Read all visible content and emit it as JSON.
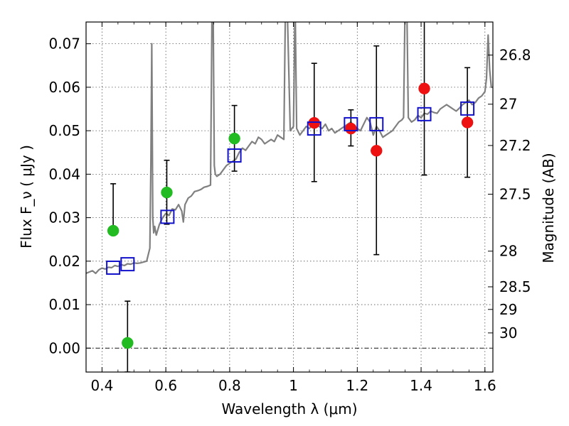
{
  "chart_data": {
    "type": "scatter",
    "xlabel": "Wavelength  λ (μm)",
    "ylabel": "Flux  F_ν  ( μJy )",
    "ylabel_right": "Magnitude (AB)",
    "xlim": [
      0.35,
      1.625
    ],
    "ylim": [
      -0.0055,
      0.075
    ],
    "grid": true,
    "x_ticks": [
      0.4,
      0.6,
      0.8,
      1.0,
      1.2,
      1.4,
      1.6
    ],
    "x_tick_labels": [
      "0.4",
      "0.6",
      "0.8",
      "1",
      "1.2",
      "1.4",
      "1.6"
    ],
    "y_ticks": [
      0.0,
      0.01,
      0.02,
      0.03,
      0.04,
      0.05,
      0.06,
      0.07
    ],
    "y_tick_labels": [
      "0.00",
      "0.01",
      "0.02",
      "0.03",
      "0.04",
      "0.05",
      "0.06",
      "0.07"
    ],
    "right_ticks": [
      {
        "label": "26.8",
        "flux": 0.0674
      },
      {
        "label": "27",
        "flux": 0.0561
      },
      {
        "label": "27.2",
        "flux": 0.0466
      },
      {
        "label": "27.5",
        "flux": 0.0354
      },
      {
        "label": "28",
        "flux": 0.0223
      },
      {
        "label": "28.5",
        "flux": 0.0141
      },
      {
        "label": "29",
        "flux": 0.0089
      },
      {
        "label": "30",
        "flux": 0.0035
      }
    ],
    "colors": {
      "green": "#22bb22",
      "red": "#ee1111",
      "model": "#808080",
      "box": "#1111cc",
      "errorbar": "#000000",
      "grid": "#555555"
    },
    "series": [
      {
        "name": "Model SED",
        "kind": "line",
        "x": [
          0.35,
          0.36,
          0.37,
          0.38,
          0.39,
          0.4,
          0.41,
          0.42,
          0.43,
          0.44,
          0.45,
          0.46,
          0.47,
          0.48,
          0.49,
          0.5,
          0.51,
          0.52,
          0.53,
          0.54,
          0.55,
          0.553,
          0.556,
          0.559,
          0.562,
          0.565,
          0.57,
          0.58,
          0.59,
          0.6,
          0.61,
          0.62,
          0.63,
          0.64,
          0.65,
          0.655,
          0.66,
          0.67,
          0.68,
          0.69,
          0.7,
          0.71,
          0.72,
          0.73,
          0.74,
          0.745,
          0.748,
          0.752,
          0.755,
          0.76,
          0.77,
          0.78,
          0.79,
          0.8,
          0.81,
          0.82,
          0.83,
          0.84,
          0.85,
          0.86,
          0.87,
          0.88,
          0.89,
          0.9,
          0.91,
          0.92,
          0.93,
          0.94,
          0.95,
          0.96,
          0.97,
          0.975,
          0.98,
          0.99,
          1.0,
          1.005,
          1.01,
          1.02,
          1.03,
          1.04,
          1.05,
          1.06,
          1.07,
          1.08,
          1.09,
          1.1,
          1.11,
          1.12,
          1.13,
          1.14,
          1.15,
          1.16,
          1.17,
          1.18,
          1.19,
          1.2,
          1.21,
          1.22,
          1.23,
          1.24,
          1.25,
          1.26,
          1.27,
          1.28,
          1.29,
          1.3,
          1.31,
          1.32,
          1.33,
          1.34,
          1.345,
          1.35,
          1.355,
          1.36,
          1.37,
          1.38,
          1.39,
          1.4,
          1.41,
          1.42,
          1.43,
          1.44,
          1.45,
          1.46,
          1.47,
          1.48,
          1.49,
          1.5,
          1.51,
          1.52,
          1.53,
          1.54,
          1.55,
          1.56,
          1.57,
          1.58,
          1.59,
          1.6,
          1.605,
          1.61,
          1.615,
          1.62,
          1.625
        ],
        "y": [
          0.0172,
          0.0175,
          0.0178,
          0.0172,
          0.018,
          0.0184,
          0.0182,
          0.0186,
          0.0185,
          0.019,
          0.0188,
          0.0192,
          0.019,
          0.0194,
          0.0193,
          0.0196,
          0.0195,
          0.0196,
          0.0198,
          0.02,
          0.023,
          0.042,
          0.07,
          0.03,
          0.0265,
          0.028,
          0.026,
          0.0285,
          0.03,
          0.031,
          0.0305,
          0.032,
          0.0318,
          0.033,
          0.0315,
          0.029,
          0.033,
          0.0345,
          0.035,
          0.036,
          0.0362,
          0.0365,
          0.037,
          0.0372,
          0.0375,
          0.08,
          0.08,
          0.042,
          0.04,
          0.0395,
          0.04,
          0.041,
          0.042,
          0.0425,
          0.043,
          0.0435,
          0.045,
          0.046,
          0.0455,
          0.0465,
          0.0475,
          0.047,
          0.0485,
          0.048,
          0.047,
          0.0475,
          0.048,
          0.0475,
          0.049,
          0.0485,
          0.048,
          0.08,
          0.08,
          0.05,
          0.051,
          0.08,
          0.0505,
          0.049,
          0.05,
          0.051,
          0.0505,
          0.0515,
          0.052,
          0.051,
          0.0505,
          0.0515,
          0.05,
          0.0505,
          0.0495,
          0.05,
          0.0505,
          0.051,
          0.0515,
          0.052,
          0.051,
          0.0505,
          0.05,
          0.0515,
          0.053,
          0.052,
          0.049,
          0.051,
          0.05,
          0.0485,
          0.049,
          0.0495,
          0.05,
          0.051,
          0.052,
          0.0525,
          0.053,
          0.08,
          0.08,
          0.053,
          0.052,
          0.0525,
          0.0535,
          0.053,
          0.054,
          0.0538,
          0.0545,
          0.0542,
          0.054,
          0.055,
          0.0555,
          0.056,
          0.0555,
          0.055,
          0.0545,
          0.0552,
          0.056,
          0.0565,
          0.057,
          0.056,
          0.0565,
          0.0575,
          0.058,
          0.059,
          0.062,
          0.072,
          0.064,
          0.06,
          0.06
        ]
      },
      {
        "name": "Green detections",
        "kind": "points",
        "marker": "circle",
        "color": "green",
        "points": [
          {
            "x": 0.435,
            "y": 0.027,
            "err_low": null,
            "err_high": 0.0378
          },
          {
            "x": 0.48,
            "y": 0.0012,
            "err_low": -0.0055,
            "err_high": 0.0108
          },
          {
            "x": 0.603,
            "y": 0.0358,
            "err_low": 0.0285,
            "err_high": 0.0432
          },
          {
            "x": 0.815,
            "y": 0.0482,
            "err_low": 0.0407,
            "err_high": 0.0558
          }
        ]
      },
      {
        "name": "Red detections",
        "kind": "points",
        "marker": "circle",
        "color": "red",
        "points": [
          {
            "x": 1.065,
            "y": 0.0518,
            "err_low": 0.0383,
            "err_high": 0.0655
          },
          {
            "x": 1.18,
            "y": 0.0505,
            "err_low": 0.0465,
            "err_high": 0.0548
          },
          {
            "x": 1.26,
            "y": 0.0454,
            "err_low": 0.0215,
            "err_high": 0.0695
          },
          {
            "x": 1.41,
            "y": 0.0597,
            "err_low": 0.0398,
            "err_high": 0.0755
          },
          {
            "x": 1.545,
            "y": 0.0519,
            "err_low": 0.0393,
            "err_high": 0.0645
          }
        ]
      },
      {
        "name": "Model photometry",
        "kind": "points",
        "marker": "open-square",
        "color": "box",
        "points": [
          {
            "x": 0.435,
            "y": 0.0185
          },
          {
            "x": 0.48,
            "y": 0.0193
          },
          {
            "x": 0.605,
            "y": 0.0302
          },
          {
            "x": 0.815,
            "y": 0.0443
          },
          {
            "x": 1.065,
            "y": 0.0505
          },
          {
            "x": 1.18,
            "y": 0.0515
          },
          {
            "x": 1.26,
            "y": 0.0515
          },
          {
            "x": 1.41,
            "y": 0.0538
          },
          {
            "x": 1.545,
            "y": 0.0551
          }
        ]
      }
    ]
  }
}
